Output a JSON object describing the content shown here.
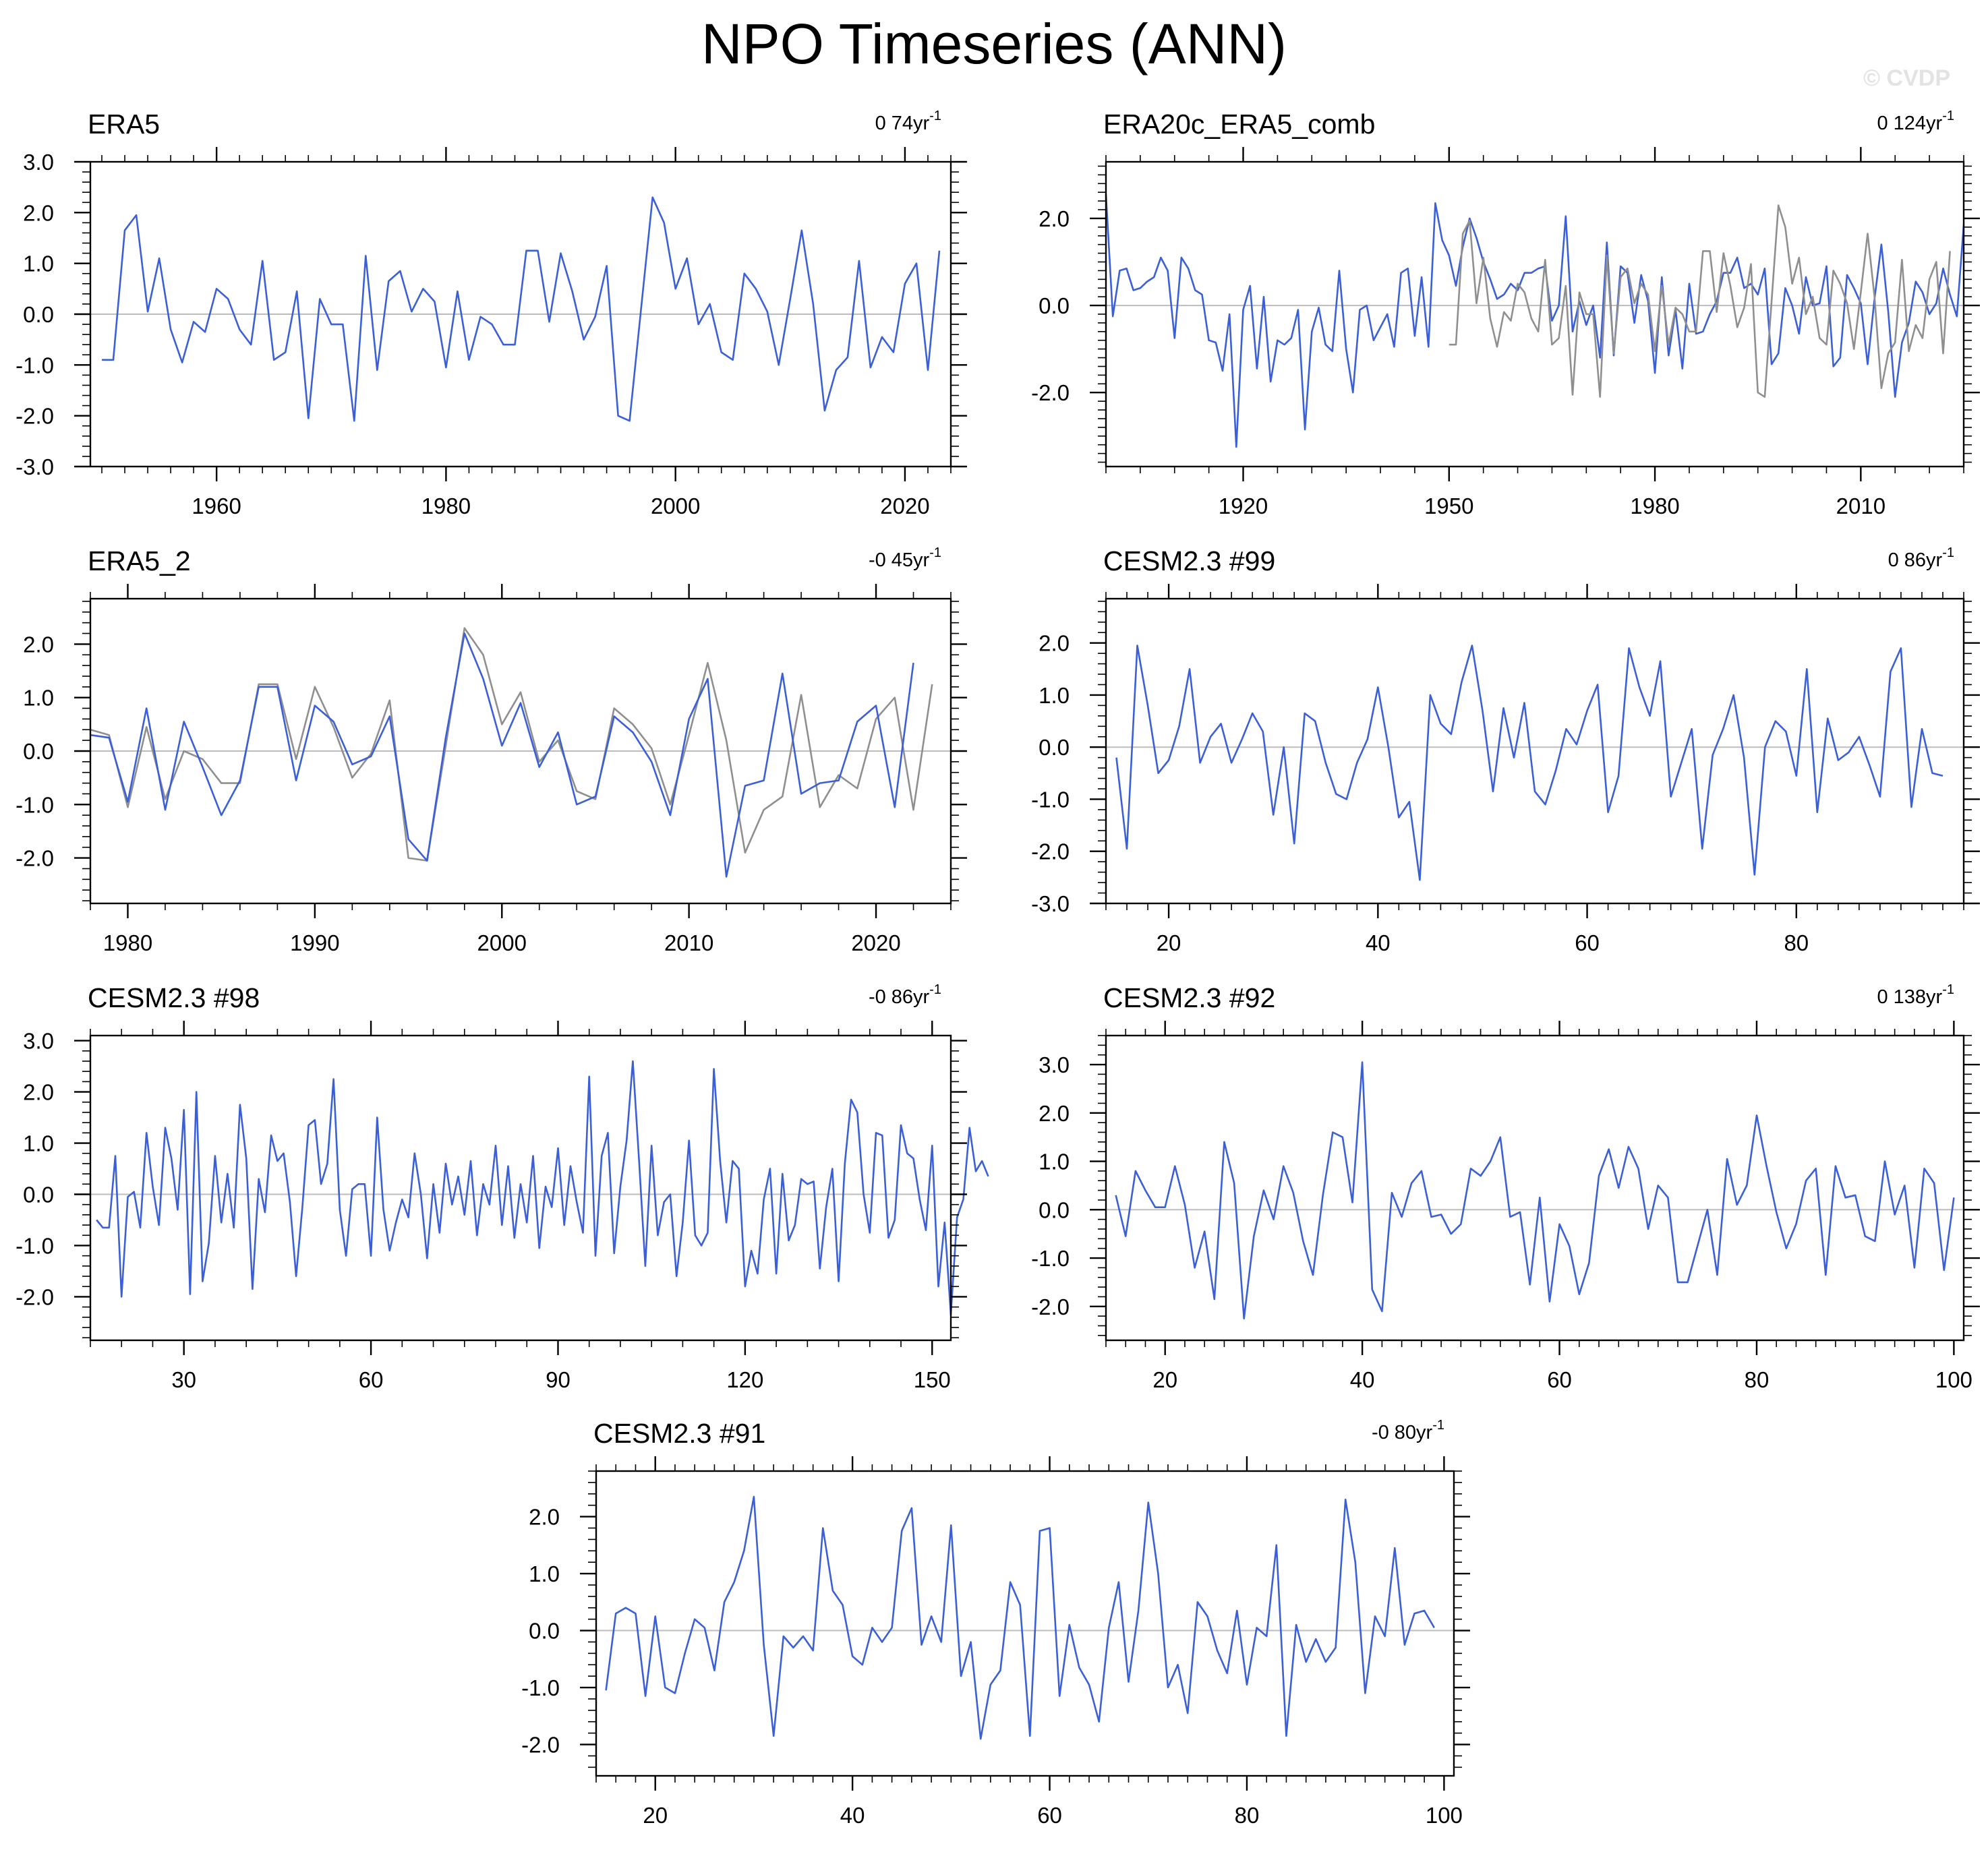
{
  "page_title": "NPO Timeseries (ANN)",
  "watermark": "© CVDP",
  "colors": {
    "series_primary": "#3b5fd6",
    "series_secondary": "#8f8f8f",
    "zero_line": "#bdbdbd",
    "axis": "#000000"
  },
  "chart_data": [
    {
      "type": "line",
      "title": "ERA5",
      "trend_value": "0 74yr",
      "trend_exponent": "-1",
      "xlim": [
        1949,
        2024
      ],
      "ylim": [
        -3.0,
        3.0
      ],
      "x_ticks": [
        1960,
        1980,
        2000,
        2020
      ],
      "y_ticks": [
        3.0,
        2.0,
        1.0,
        0.0,
        -1.0,
        -2.0,
        -3.0
      ],
      "y_tick_labels": [
        "3.0",
        "2.0",
        "1.0",
        "0.0",
        "-1.0",
        "-2.0",
        "-3.0"
      ],
      "x_start": 1950,
      "series": [
        {
          "name": "primary",
          "color": "#3b5fd6",
          "values": [
            -0.9,
            -0.9,
            1.65,
            1.95,
            0.05,
            1.1,
            -0.3,
            -0.95,
            -0.15,
            -0.35,
            0.5,
            0.3,
            -0.3,
            -0.6,
            1.05,
            -0.9,
            -0.75,
            0.45,
            -2.05,
            0.3,
            -0.2,
            -0.2,
            -2.1,
            1.15,
            -1.1,
            0.65,
            0.85,
            0.05,
            0.5,
            0.25,
            -1.05,
            0.45,
            -0.9,
            -0.05,
            -0.2,
            -0.6,
            -0.6,
            1.25,
            1.25,
            -0.15,
            1.2,
            0.45,
            -0.5,
            -0.05,
            0.95,
            -2.0,
            -2.1,
            0.1,
            2.3,
            1.8,
            0.5,
            1.1,
            -0.2,
            0.2,
            -0.75,
            -0.9,
            0.8,
            0.5,
            0.05,
            -1.0,
            0.3,
            1.65,
            0.2,
            -1.9,
            -1.1,
            -0.85,
            1.05,
            -1.05,
            -0.45,
            -0.75,
            0.6,
            1.0,
            -1.1,
            1.25
          ]
        }
      ]
    },
    {
      "type": "line",
      "title": "ERA20c_ERA5_comb",
      "trend_value": "0 124yr",
      "trend_exponent": "-1",
      "xlim": [
        1900,
        2025
      ],
      "ylim": [
        -3.7,
        3.3
      ],
      "x_ticks": [
        1920,
        1950,
        1980,
        2010
      ],
      "y_ticks": [
        2.0,
        0.0,
        -2.0
      ],
      "y_tick_labels": [
        "2.0",
        "0.0",
        "-2.0"
      ],
      "x_start": 1900,
      "series": [
        {
          "name": "primary",
          "color": "#3b5fd6",
          "values": [
            2.55,
            -0.25,
            0.8,
            0.85,
            0.35,
            0.4,
            0.55,
            0.65,
            1.1,
            0.8,
            -0.75,
            1.1,
            0.85,
            0.35,
            0.25,
            -0.8,
            -0.85,
            -1.5,
            -0.2,
            -3.25,
            -0.1,
            0.45,
            -1.45,
            0.2,
            -1.75,
            -0.8,
            -0.9,
            -0.75,
            -0.1,
            -2.85,
            -0.6,
            -0.05,
            -0.9,
            -1.05,
            0.8,
            -1.0,
            -2.0,
            -0.1,
            0.0,
            -0.8,
            -0.5,
            -0.2,
            -0.95,
            0.75,
            0.85,
            -0.7,
            0.65,
            -0.95,
            2.35,
            1.5,
            1.15,
            0.45,
            1.35,
            2.0,
            1.55,
            1.0,
            0.6,
            0.15,
            0.25,
            0.5,
            0.35,
            0.75,
            0.75,
            0.85,
            0.9,
            -0.35,
            0.0,
            2.05,
            -0.6,
            0.1,
            -0.45,
            0.0,
            -1.2,
            1.45,
            -1.15,
            0.9,
            0.75,
            -0.4,
            0.7,
            0.1,
            -1.55,
            0.65,
            -1.15,
            -0.1,
            -1.45,
            0.5,
            -0.65,
            -0.6,
            -0.2,
            0.1,
            0.75,
            0.75,
            1.1,
            0.4,
            0.5,
            0.25,
            0.85,
            -1.35,
            -1.1,
            0.4,
            0.0,
            -0.65,
            0.65,
            0.0,
            0.05,
            0.9,
            -1.4,
            -1.2,
            0.7,
            0.4,
            0.05,
            -1.35,
            0.15,
            1.4,
            -0.15,
            -2.1,
            -0.85,
            -0.4,
            0.55,
            0.3,
            -0.2,
            0.05,
            0.85,
            0.25,
            -0.25,
            1.85
          ]
        },
        {
          "name": "secondary",
          "color": "#8f8f8f",
          "x_start": 1950,
          "values": [
            -0.9,
            -0.9,
            1.65,
            1.95,
            0.05,
            1.1,
            -0.3,
            -0.95,
            -0.15,
            -0.35,
            0.5,
            0.3,
            -0.3,
            -0.6,
            1.05,
            -0.9,
            -0.75,
            0.45,
            -2.05,
            0.3,
            -0.2,
            -0.2,
            -2.1,
            1.15,
            -1.1,
            0.65,
            0.85,
            0.05,
            0.5,
            0.25,
            -1.05,
            0.45,
            -0.9,
            -0.05,
            -0.2,
            -0.6,
            -0.6,
            1.25,
            1.25,
            -0.15,
            1.2,
            0.45,
            -0.5,
            -0.05,
            0.95,
            -2.0,
            -2.1,
            0.1,
            2.3,
            1.8,
            0.5,
            1.1,
            -0.2,
            0.2,
            -0.75,
            -0.9,
            0.8,
            0.5,
            0.05,
            -1.0,
            0.3,
            1.65,
            0.2,
            -1.9,
            -1.1,
            -0.85,
            1.05,
            -1.05,
            -0.45,
            -0.75,
            0.6,
            1.0,
            -1.1,
            1.25
          ]
        }
      ]
    },
    {
      "type": "line",
      "title": "ERA5_2",
      "trend_value": "-0 45yr",
      "trend_exponent": "-1",
      "xlim": [
        1978,
        2024
      ],
      "ylim": [
        -2.85,
        2.85
      ],
      "x_ticks": [
        1980,
        1990,
        2000,
        2010,
        2020
      ],
      "y_ticks": [
        2.0,
        1.0,
        0.0,
        -1.0,
        -2.0
      ],
      "y_tick_labels": [
        "2.0",
        "1.0",
        "0.0",
        "-1.0",
        "-2.0"
      ],
      "x_start": 1978,
      "series": [
        {
          "name": "secondary",
          "color": "#8f8f8f",
          "values": [
            0.4,
            0.3,
            -1.05,
            0.45,
            -0.9,
            0.0,
            -0.15,
            -0.6,
            -0.6,
            1.25,
            1.25,
            -0.15,
            1.2,
            0.45,
            -0.5,
            -0.05,
            0.95,
            -2.0,
            -2.05,
            0.1,
            2.3,
            1.8,
            0.5,
            1.1,
            -0.2,
            0.2,
            -0.75,
            -0.9,
            0.8,
            0.5,
            0.05,
            -1.0,
            0.3,
            1.65,
            0.2,
            -1.9,
            -1.1,
            -0.85,
            1.05,
            -1.05,
            -0.45,
            -0.7,
            0.6,
            1.0,
            -1.1,
            1.25
          ]
        },
        {
          "name": "primary",
          "color": "#3b5fd6",
          "values": [
            0.3,
            0.25,
            -0.95,
            0.8,
            -1.1,
            0.55,
            -0.3,
            -1.2,
            -0.55,
            1.2,
            1.2,
            -0.55,
            0.85,
            0.55,
            -0.25,
            -0.1,
            0.65,
            -1.65,
            -2.05,
            0.25,
            2.2,
            1.35,
            0.1,
            0.9,
            -0.3,
            0.35,
            -1.0,
            -0.85,
            0.65,
            0.35,
            -0.2,
            -1.2,
            0.6,
            1.35,
            -2.35,
            -0.65,
            -0.55,
            1.45,
            -0.8,
            -0.6,
            -0.55,
            0.55,
            0.85,
            -1.05,
            1.65
          ]
        }
      ]
    },
    {
      "type": "line",
      "title": "CESM2.3 #99",
      "trend_value": "0 86yr",
      "trend_exponent": "-1",
      "xlim": [
        14,
        96
      ],
      "ylim": [
        -3.0,
        2.85
      ],
      "x_ticks": [
        20,
        40,
        60,
        80
      ],
      "y_ticks": [
        2.0,
        1.0,
        0.0,
        -1.0,
        -2.0,
        -3.0
      ],
      "y_tick_labels": [
        "2.0",
        "1.0",
        "0.0",
        "-1.0",
        "-2.0",
        "-3.0"
      ],
      "x_start": 15,
      "series": [
        {
          "name": "primary",
          "color": "#3b5fd6",
          "values": [
            -0.2,
            -1.95,
            1.95,
            0.8,
            -0.5,
            -0.25,
            0.4,
            1.5,
            -0.3,
            0.2,
            0.45,
            -0.3,
            0.15,
            0.65,
            0.3,
            -1.3,
            0.0,
            -1.85,
            0.65,
            0.5,
            -0.3,
            -0.9,
            -1.0,
            -0.3,
            0.15,
            1.15,
            0.0,
            -1.35,
            -1.05,
            -2.55,
            1.0,
            0.45,
            0.25,
            1.25,
            1.95,
            0.7,
            -0.85,
            0.75,
            -0.2,
            0.85,
            -0.85,
            -1.1,
            -0.45,
            0.35,
            0.05,
            0.7,
            1.2,
            -1.25,
            -0.55,
            1.9,
            1.15,
            0.6,
            1.65,
            -0.95,
            -0.3,
            0.35,
            -1.95,
            -0.15,
            0.35,
            1.0,
            -0.2,
            -2.45,
            0.0,
            0.5,
            0.3,
            -0.55,
            1.5,
            -1.25,
            0.55,
            -0.25,
            -0.1,
            0.2,
            -0.35,
            -0.95,
            1.45,
            1.9,
            -1.15,
            0.35,
            -0.5,
            -0.55
          ]
        }
      ]
    },
    {
      "type": "line",
      "title": "CESM2.3 #98",
      "trend_value": "-0 86yr",
      "trend_exponent": "-1",
      "xlim": [
        15,
        153
      ],
      "ylim": [
        -2.85,
        3.1
      ],
      "x_ticks": [
        30,
        60,
        90,
        120,
        150
      ],
      "y_ticks": [
        3.0,
        2.0,
        1.0,
        0.0,
        -1.0,
        -2.0
      ],
      "y_tick_labels": [
        "3.0",
        "2.0",
        "1.0",
        "0.0",
        "-1.0",
        "-2.0"
      ],
      "x_start": 16,
      "series": [
        {
          "name": "primary",
          "color": "#3b5fd6",
          "values": [
            -0.5,
            -0.65,
            -0.65,
            0.75,
            -2.0,
            -0.05,
            0.05,
            -0.65,
            1.2,
            0.15,
            -0.6,
            1.3,
            0.7,
            -0.3,
            1.65,
            -1.95,
            2.0,
            -1.7,
            -0.95,
            0.75,
            -0.55,
            0.4,
            -0.65,
            1.75,
            0.7,
            -1.85,
            0.3,
            -0.35,
            1.15,
            0.65,
            0.8,
            -0.15,
            -1.6,
            -0.25,
            1.35,
            1.45,
            0.2,
            0.6,
            2.25,
            -0.3,
            -1.2,
            0.1,
            0.2,
            0.2,
            -1.2,
            1.5,
            -0.3,
            -1.1,
            -0.55,
            -0.1,
            -0.45,
            0.8,
            0.0,
            -1.25,
            0.2,
            -0.75,
            0.6,
            -0.2,
            0.35,
            -0.4,
            0.65,
            -0.8,
            0.2,
            -0.2,
            0.95,
            -0.6,
            0.55,
            -0.85,
            0.2,
            -0.55,
            0.75,
            -1.05,
            0.15,
            -0.25,
            0.9,
            -0.6,
            0.55,
            -0.15,
            -0.75,
            2.3,
            -1.2,
            0.75,
            1.2,
            -1.15,
            0.15,
            1.05,
            2.6,
            0.65,
            -1.4,
            0.95,
            -0.8,
            -0.15,
            0.0,
            -1.6,
            -0.55,
            1.05,
            -0.8,
            -1.0,
            -0.75,
            2.45,
            0.65,
            -0.55,
            0.65,
            0.5,
            -1.8,
            -1.1,
            -1.55,
            -0.1,
            0.5,
            -1.55,
            0.4,
            -0.9,
            -0.6,
            0.3,
            0.2,
            0.25,
            -1.45,
            -0.25,
            0.5,
            -1.7,
            0.6,
            1.85,
            1.6,
            0.0,
            -0.75,
            1.2,
            1.15,
            -0.85,
            -0.5,
            1.35,
            0.8,
            0.7,
            -0.1,
            -0.7,
            0.95,
            -1.8,
            -0.55,
            -2.35,
            -0.45,
            -0.1,
            1.3,
            0.45,
            0.65,
            0.35
          ]
        }
      ]
    },
    {
      "type": "line",
      "title": "CESM2.3 #92",
      "trend_value": "0 138yr",
      "trend_exponent": "-1",
      "xlim": [
        14,
        101
      ],
      "ylim": [
        -2.7,
        3.6
      ],
      "x_ticks": [
        20,
        40,
        60,
        80,
        100
      ],
      "y_ticks": [
        3.0,
        2.0,
        1.0,
        0.0,
        -1.0,
        -2.0
      ],
      "y_tick_labels": [
        "3.0",
        "2.0",
        "1.0",
        "0.0",
        "-1.0",
        "-2.0"
      ],
      "x_start": 15,
      "series": [
        {
          "name": "primary",
          "color": "#3b5fd6",
          "values": [
            0.3,
            -0.55,
            0.8,
            0.4,
            0.05,
            0.05,
            0.9,
            0.1,
            -1.2,
            -0.45,
            -1.85,
            1.4,
            0.55,
            -2.25,
            -0.55,
            0.4,
            -0.2,
            0.9,
            0.35,
            -0.65,
            -1.35,
            0.3,
            1.6,
            1.5,
            0.15,
            3.05,
            -1.65,
            -2.1,
            0.35,
            -0.15,
            0.55,
            0.8,
            -0.15,
            -0.1,
            -0.5,
            -0.3,
            0.85,
            0.7,
            1.0,
            1.5,
            -0.15,
            -0.05,
            -1.55,
            0.25,
            -1.9,
            -0.3,
            -0.75,
            -1.75,
            -1.1,
            0.7,
            1.25,
            0.45,
            1.3,
            0.85,
            -0.4,
            0.5,
            0.25,
            -1.5,
            -1.5,
            -0.75,
            0.0,
            -1.35,
            1.05,
            0.1,
            0.5,
            1.95,
            0.9,
            -0.05,
            -0.8,
            -0.3,
            0.6,
            0.85,
            -1.35,
            0.9,
            0.25,
            0.3,
            -0.55,
            -0.65,
            1.0,
            -0.1,
            0.5,
            -1.2,
            0.85,
            0.55,
            -1.25,
            0.25
          ]
        }
      ]
    },
    {
      "type": "line",
      "title": "CESM2.3 #91",
      "trend_value": "-0 80yr",
      "trend_exponent": "-1",
      "xlim": [
        14,
        101
      ],
      "ylim": [
        -2.55,
        2.8
      ],
      "x_ticks": [
        20,
        40,
        60,
        80,
        100
      ],
      "y_ticks": [
        2.0,
        1.0,
        0.0,
        -1.0,
        -2.0
      ],
      "y_tick_labels": [
        "2.0",
        "1.0",
        "0.0",
        "-1.0",
        "-2.0"
      ],
      "x_start": 15,
      "series": [
        {
          "name": "primary",
          "color": "#3b5fd6",
          "values": [
            -1.05,
            0.3,
            0.4,
            0.3,
            -1.15,
            0.25,
            -1.0,
            -1.1,
            -0.4,
            0.2,
            0.05,
            -0.7,
            0.5,
            0.85,
            1.4,
            2.35,
            -0.25,
            -1.85,
            -0.1,
            -0.3,
            -0.1,
            -0.35,
            1.8,
            0.7,
            0.45,
            -0.45,
            -0.6,
            0.05,
            -0.2,
            0.05,
            1.75,
            2.15,
            -0.25,
            0.25,
            -0.2,
            1.85,
            -0.8,
            -0.2,
            -1.9,
            -0.95,
            -0.7,
            0.85,
            0.45,
            -1.85,
            1.75,
            1.8,
            -1.15,
            0.1,
            -0.65,
            -0.95,
            -1.6,
            0.05,
            0.85,
            -0.9,
            0.35,
            2.25,
            1.0,
            -1.0,
            -0.6,
            -1.45,
            0.5,
            0.25,
            -0.35,
            -0.75,
            0.35,
            -0.95,
            0.05,
            -0.1,
            1.5,
            -1.85,
            0.1,
            -0.55,
            -0.15,
            -0.55,
            -0.3,
            2.3,
            1.2,
            -1.1,
            0.25,
            -0.1,
            1.45,
            -0.25,
            0.3,
            0.35,
            0.05
          ]
        }
      ]
    }
  ]
}
